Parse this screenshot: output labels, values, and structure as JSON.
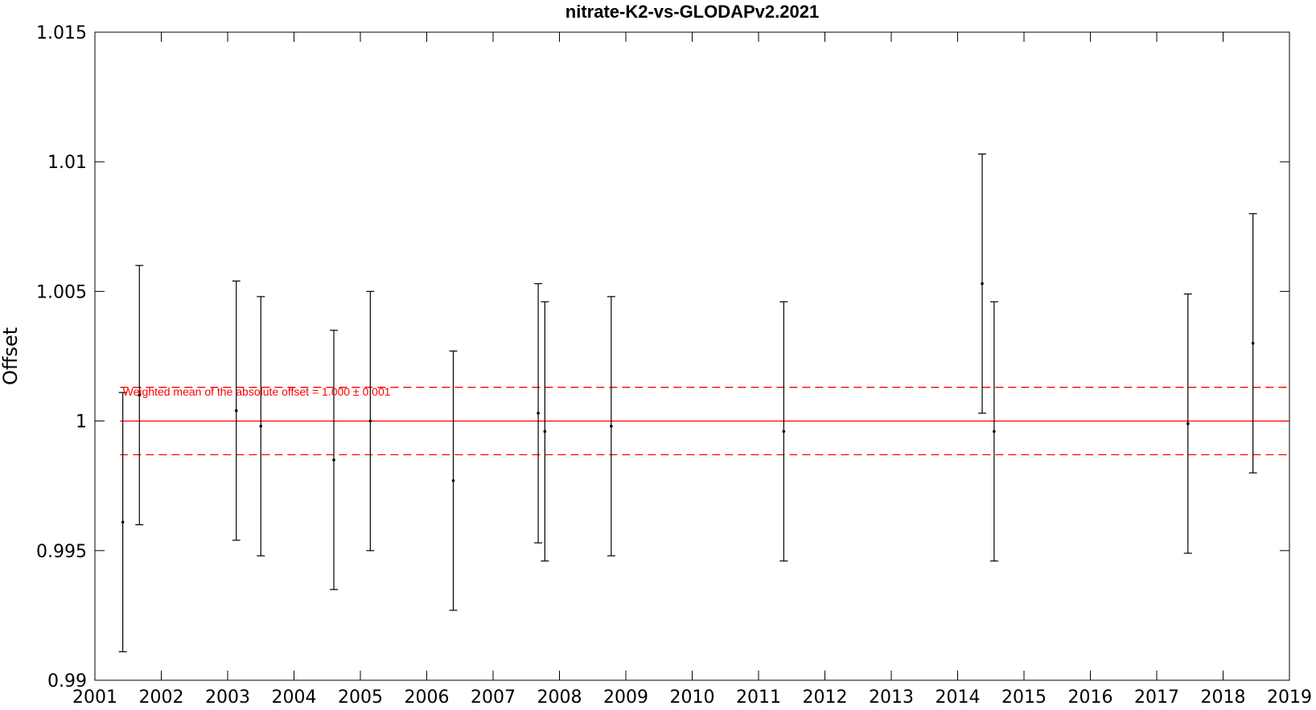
{
  "chart_data": {
    "type": "scatter",
    "title": "nitrate-K2-vs-GLODAPv2.2021",
    "xlabel": "",
    "ylabel": "Offset",
    "xlim": [
      2001,
      2019
    ],
    "ylim": [
      0.99,
      1.015
    ],
    "x_ticks": [
      2001,
      2002,
      2003,
      2004,
      2005,
      2006,
      2007,
      2008,
      2009,
      2010,
      2011,
      2012,
      2013,
      2014,
      2015,
      2016,
      2017,
      2018,
      2019
    ],
    "y_ticks": [
      0.99,
      0.995,
      1,
      1.005,
      1.01,
      1.015
    ],
    "y_tick_labels": [
      "0.99",
      "0.995",
      "1",
      "1.005",
      "1.01",
      "1.015"
    ],
    "grid": false,
    "points": [
      {
        "x": 2001.42,
        "y": 0.9961,
        "err": 0.005
      },
      {
        "x": 2001.67,
        "y": 1.001,
        "err": 0.005
      },
      {
        "x": 2003.13,
        "y": 1.0004,
        "err": 0.005
      },
      {
        "x": 2003.5,
        "y": 0.9998,
        "err": 0.005
      },
      {
        "x": 2004.6,
        "y": 0.9985,
        "err": 0.005
      },
      {
        "x": 2005.15,
        "y": 1.0,
        "err": 0.005
      },
      {
        "x": 2006.4,
        "y": 0.9977,
        "err": 0.005
      },
      {
        "x": 2007.68,
        "y": 1.0003,
        "err": 0.005
      },
      {
        "x": 2007.78,
        "y": 0.9996,
        "err": 0.005
      },
      {
        "x": 2008.78,
        "y": 0.9998,
        "err": 0.005
      },
      {
        "x": 2011.38,
        "y": 0.9996,
        "err": 0.005
      },
      {
        "x": 2014.37,
        "y": 1.0053,
        "err": 0.005
      },
      {
        "x": 2014.55,
        "y": 0.9996,
        "err": 0.005
      },
      {
        "x": 2017.47,
        "y": 0.9999,
        "err": 0.005
      },
      {
        "x": 2018.45,
        "y": 1.003,
        "err": 0.005
      }
    ],
    "weighted_mean": {
      "value": 1.0,
      "lower": 0.9987,
      "upper": 1.0013,
      "x_range": [
        2001.38,
        2019
      ],
      "label": "Weighted mean of the absolute offset = 1.000 ± 0.001",
      "label_x": 2001.42,
      "label_y": 1.0011
    },
    "colors": {
      "points": "#000000",
      "mean": "#ff0000",
      "axes": "#000000"
    }
  }
}
